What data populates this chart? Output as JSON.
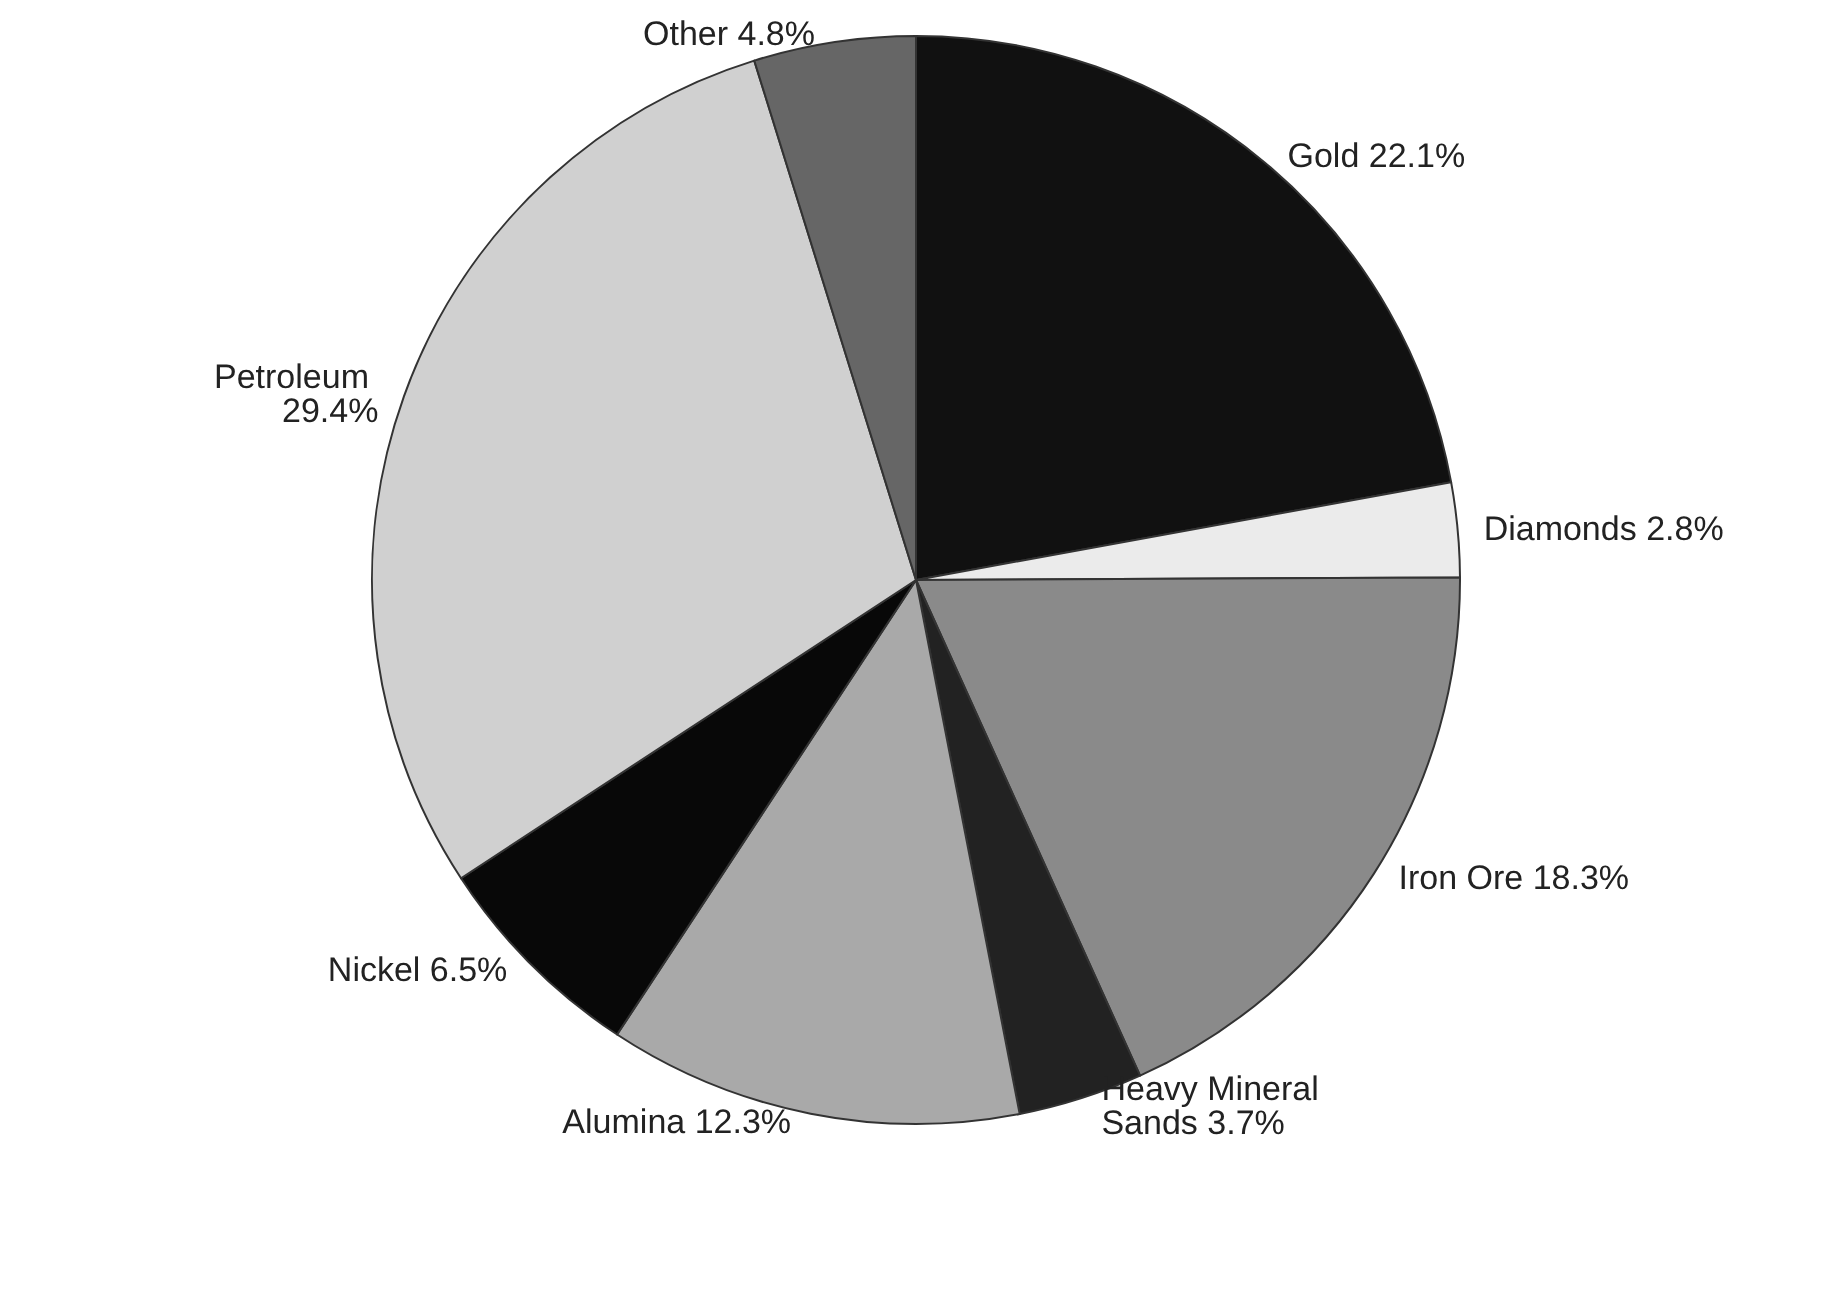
{
  "chart_data": {
    "type": "pie",
    "categories": [
      "Gold",
      "Diamonds",
      "Iron Ore",
      "Heavy Mineral Sands",
      "Alumina",
      "Nickel",
      "Petroleum",
      "Other"
    ],
    "values": [
      22.1,
      2.8,
      18.3,
      3.7,
      12.3,
      6.5,
      29.4,
      4.8
    ],
    "value_labels": [
      "22.1%",
      "2.8%",
      "18.3%",
      "3.7%",
      "12.3%",
      "6.5%",
      "29.4%",
      "4.8%"
    ],
    "colors": [
      "#111111",
      "#ebebeb",
      "#8a8a8a",
      "#222222",
      "#a9a9a9",
      "#080808",
      "#d0d0d0",
      "#666666"
    ],
    "legend": false
  }
}
